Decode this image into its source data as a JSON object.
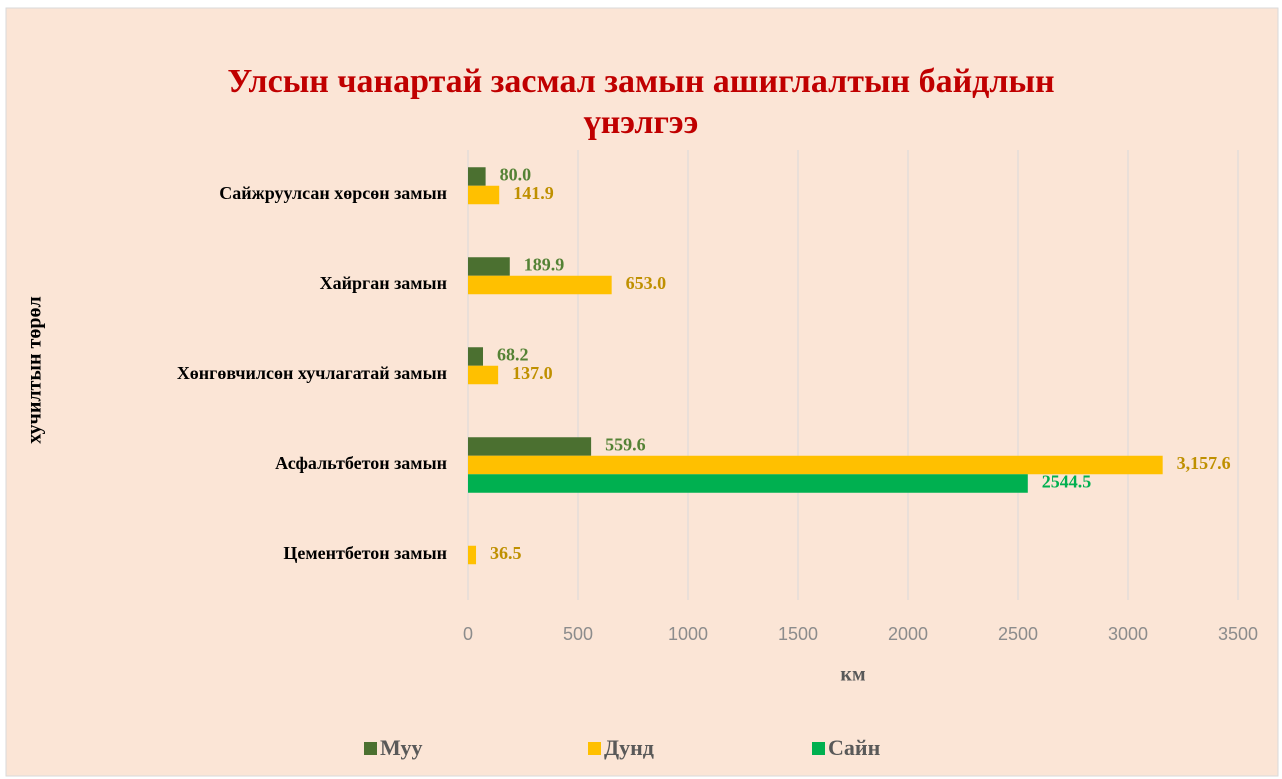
{
  "chart_data": {
    "type": "hbar",
    "title": "Улсын чанартай засмал замын ашиглалтын байдлын үнэлгээ",
    "x_label": "км",
    "y_label": "хучилтын төрөл",
    "categories": [
      "Сайжруулсан хөрсөн замын",
      "Хайрган замын",
      "Хөнгөвчилсөн  хучлагатай замын",
      "Асфальтбетон замын",
      "Цементбетон замын"
    ],
    "series": [
      {
        "name": "Муу",
        "color": "#4b7030",
        "label_color": "#548235",
        "values": [
          80.0,
          189.9,
          68.2,
          559.6,
          null
        ],
        "value_labels": [
          "80.0",
          "189.9",
          "68.2",
          "559.6",
          null
        ]
      },
      {
        "name": "Дунд",
        "color": "#ffc000",
        "label_color": "#bf9000",
        "values": [
          141.9,
          653.0,
          137.0,
          3157.6,
          36.5
        ],
        "value_labels": [
          "141.9",
          "653.0",
          "137.0",
          "3,157.6",
          "36.5"
        ]
      },
      {
        "name": "Сайн",
        "color": "#00b050",
        "label_color": "#00b050",
        "values": [
          null,
          null,
          null,
          2544.5,
          null
        ],
        "value_labels": [
          null,
          null,
          null,
          "2544.5",
          null
        ]
      }
    ],
    "xlim": [
      0,
      3500
    ],
    "xticks": [
      0,
      500,
      1000,
      1500,
      2000,
      2500,
      3000,
      3500
    ],
    "grid": true,
    "legend": "bottom"
  }
}
